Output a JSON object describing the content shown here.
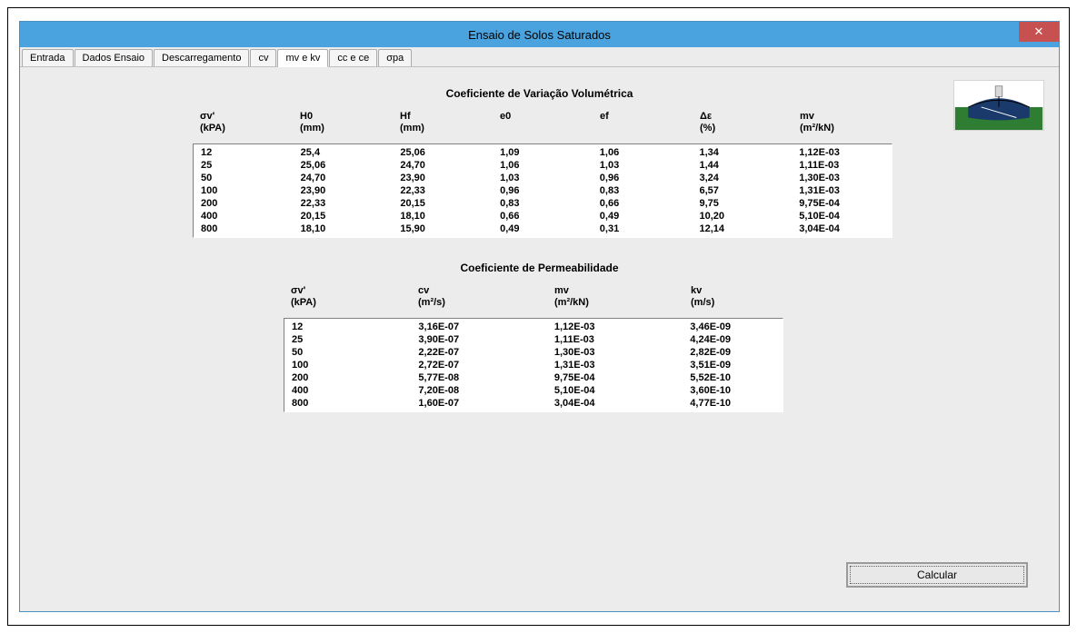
{
  "window": {
    "title": "Ensaio de Solos Saturados",
    "close_glyph": "✕"
  },
  "tabs": [
    {
      "label": "Entrada"
    },
    {
      "label": "Dados Ensaio"
    },
    {
      "label": "Descarregamento"
    },
    {
      "label": "cv"
    },
    {
      "label": "mv e kv"
    },
    {
      "label": "cc e ce"
    },
    {
      "label": "σpa"
    }
  ],
  "active_tab_index": 4,
  "section1": {
    "title": "Coeficiente de Variação Volumétrica",
    "columns": [
      "σv'\n(kPA)",
      "H0\n(mm)",
      "Hf\n(mm)",
      "e0",
      "ef",
      "Δε\n(%)",
      "mv\n(m²/kN)"
    ],
    "col_widths": [
      "110",
      "110",
      "110",
      "110",
      "110",
      "110",
      "110"
    ],
    "rows": [
      [
        "12",
        "25,4",
        "25,06",
        "1,09",
        "1,06",
        "1,34",
        "1,12E-03"
      ],
      [
        "25",
        "25,06",
        "24,70",
        "1,06",
        "1,03",
        "1,44",
        "1,11E-03"
      ],
      [
        "50",
        "24,70",
        "23,90",
        "1,03",
        "0,96",
        "3,24",
        "1,30E-03"
      ],
      [
        "100",
        "23,90",
        "22,33",
        "0,96",
        "0,83",
        "6,57",
        "1,31E-03"
      ],
      [
        "200",
        "22,33",
        "20,15",
        "0,83",
        "0,66",
        "9,75",
        "9,75E-04"
      ],
      [
        "400",
        "20,15",
        "18,10",
        "0,66",
        "0,49",
        "10,20",
        "5,10E-04"
      ],
      [
        "800",
        "18,10",
        "15,90",
        "0,49",
        "0,31",
        "12,14",
        "3,04E-04"
      ]
    ]
  },
  "section2": {
    "title": "Coeficiente de Permeabilidade",
    "columns": [
      "σv'\n(kPA)",
      "cv\n(m²/s)",
      "mv\n(m²/kN)",
      "kv\n(m/s)"
    ],
    "col_widths": [
      "140",
      "150",
      "150",
      "110"
    ],
    "rows": [
      [
        "12",
        "3,16E-07",
        "1,12E-03",
        "3,46E-09"
      ],
      [
        "25",
        "3,90E-07",
        "1,11E-03",
        "4,24E-09"
      ],
      [
        "50",
        "2,22E-07",
        "1,30E-03",
        "2,82E-09"
      ],
      [
        "100",
        "2,72E-07",
        "1,31E-03",
        "3,51E-09"
      ],
      [
        "200",
        "5,77E-08",
        "9,75E-04",
        "5,52E-10"
      ],
      [
        "400",
        "7,20E-08",
        "5,10E-04",
        "3,60E-10"
      ],
      [
        "800",
        "1,60E-07",
        "3,04E-04",
        "4,77E-10"
      ]
    ]
  },
  "buttons": {
    "calcular": "Calcular"
  },
  "colors": {
    "titlebar_bg": "#4aa3df",
    "close_bg": "#c75050",
    "window_bg": "#ececec",
    "logo_green": "#2e7d32",
    "logo_blue": "#1a3a6b",
    "logo_white": "#ffffff"
  }
}
